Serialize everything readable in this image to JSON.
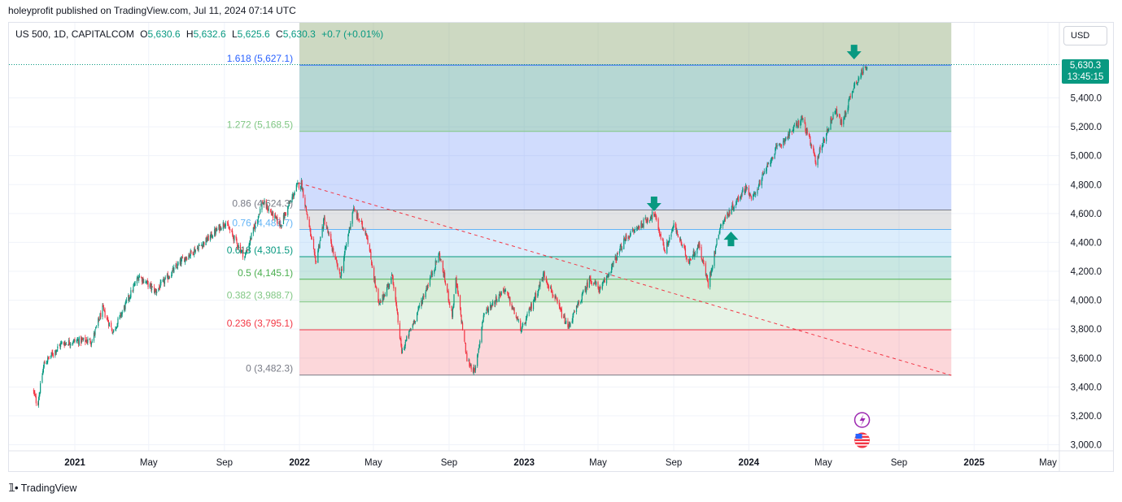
{
  "publisher": "holeyprofit published on TradingView.com, Jul 11, 2024 07:14 UTC",
  "legend": {
    "symbol": "US 500, 1D, CAPITALCOM",
    "o_label": "O",
    "o": "5,630.6",
    "h_label": "H",
    "h": "5,632.6",
    "l_label": "L",
    "l": "5,625.6",
    "c_label": "C",
    "c": "5,630.3",
    "change": "+0.7 (+0.01%)"
  },
  "currency": "USD",
  "last_price": {
    "price": "5,630.3",
    "countdown": "13:45:15"
  },
  "brand": "TradingView",
  "colors": {
    "up": "#089981",
    "down": "#f23645",
    "accent": "#2962ff"
  },
  "chart_data": {
    "type": "candlestick",
    "title": "",
    "xlabel": "",
    "ylabel": "",
    "ylim": [
      2950,
      5750
    ],
    "x_tick_labels": [
      {
        "label": "2021",
        "date": "2021-01-01"
      },
      {
        "label": "May",
        "date": "2021-05-01"
      },
      {
        "label": "Sep",
        "date": "2021-09-01"
      },
      {
        "label": "2022",
        "date": "2022-01-01"
      },
      {
        "label": "May",
        "date": "2022-05-01"
      },
      {
        "label": "Sep",
        "date": "2022-09-01"
      },
      {
        "label": "2023",
        "date": "2023-01-01"
      },
      {
        "label": "May",
        "date": "2023-05-01"
      },
      {
        "label": "Sep",
        "date": "2023-09-01"
      },
      {
        "label": "2024",
        "date": "2024-01-01"
      },
      {
        "label": "May",
        "date": "2024-05-01"
      },
      {
        "label": "Sep",
        "date": "2024-09-01"
      },
      {
        "label": "2025",
        "date": "2025-01-01"
      },
      {
        "label": "May",
        "date": "2025-05-01"
      }
    ],
    "y_tick_labels": [
      "3,000.0",
      "3,200.0",
      "3,400.0",
      "3,600.0",
      "3,800.0",
      "4,000.0",
      "4,200.0",
      "4,400.0",
      "4,600.0",
      "4,800.0",
      "5,000.0",
      "5,200.0",
      "5,400.0"
    ],
    "y_tick_values": [
      3000,
      3200,
      3400,
      3600,
      3800,
      4000,
      4200,
      4400,
      4600,
      4800,
      5000,
      5200,
      5400
    ],
    "price_path": [
      {
        "date": "2020-10-25",
        "price": 3380
      },
      {
        "date": "2020-11-01",
        "price": 3270
      },
      {
        "date": "2020-11-12",
        "price": 3560
      },
      {
        "date": "2020-12-10",
        "price": 3700
      },
      {
        "date": "2021-01-05",
        "price": 3720
      },
      {
        "date": "2021-01-29",
        "price": 3720
      },
      {
        "date": "2021-02-15",
        "price": 3940
      },
      {
        "date": "2021-03-04",
        "price": 3780
      },
      {
        "date": "2021-04-15",
        "price": 4170
      },
      {
        "date": "2021-05-12",
        "price": 4060
      },
      {
        "date": "2021-06-25",
        "price": 4280
      },
      {
        "date": "2021-07-30",
        "price": 4400
      },
      {
        "date": "2021-09-02",
        "price": 4540
      },
      {
        "date": "2021-10-04",
        "price": 4300
      },
      {
        "date": "2021-11-02",
        "price": 4680
      },
      {
        "date": "2021-12-01",
        "price": 4520
      },
      {
        "date": "2021-12-28",
        "price": 4790
      },
      {
        "date": "2022-01-04",
        "price": 4810
      },
      {
        "date": "2022-01-27",
        "price": 4260
      },
      {
        "date": "2022-02-10",
        "price": 4560
      },
      {
        "date": "2022-03-08",
        "price": 4160
      },
      {
        "date": "2022-03-29",
        "price": 4630
      },
      {
        "date": "2022-04-20",
        "price": 4460
      },
      {
        "date": "2022-05-10",
        "price": 3960
      },
      {
        "date": "2022-06-01",
        "price": 4170
      },
      {
        "date": "2022-06-16",
        "price": 3640
      },
      {
        "date": "2022-07-10",
        "price": 3900
      },
      {
        "date": "2022-08-16",
        "price": 4320
      },
      {
        "date": "2022-09-06",
        "price": 3900
      },
      {
        "date": "2022-09-12",
        "price": 4140
      },
      {
        "date": "2022-09-30",
        "price": 3590
      },
      {
        "date": "2022-10-13",
        "price": 3500
      },
      {
        "date": "2022-10-27",
        "price": 3900
      },
      {
        "date": "2022-11-30",
        "price": 4080
      },
      {
        "date": "2022-12-28",
        "price": 3790
      },
      {
        "date": "2023-02-02",
        "price": 4180
      },
      {
        "date": "2023-03-13",
        "price": 3810
      },
      {
        "date": "2023-04-18",
        "price": 4150
      },
      {
        "date": "2023-05-05",
        "price": 4070
      },
      {
        "date": "2023-06-15",
        "price": 4430
      },
      {
        "date": "2023-07-31",
        "price": 4600
      },
      {
        "date": "2023-08-18",
        "price": 4340
      },
      {
        "date": "2023-09-01",
        "price": 4520
      },
      {
        "date": "2023-09-25",
        "price": 4270
      },
      {
        "date": "2023-10-12",
        "price": 4380
      },
      {
        "date": "2023-10-27",
        "price": 4110
      },
      {
        "date": "2023-11-15",
        "price": 4510
      },
      {
        "date": "2023-12-28",
        "price": 4790
      },
      {
        "date": "2024-01-05",
        "price": 4690
      },
      {
        "date": "2024-02-12",
        "price": 5030
      },
      {
        "date": "2024-03-28",
        "price": 5260
      },
      {
        "date": "2024-04-19",
        "price": 4960
      },
      {
        "date": "2024-05-20",
        "price": 5320
      },
      {
        "date": "2024-05-31",
        "price": 5220
      },
      {
        "date": "2024-06-20",
        "price": 5490
      },
      {
        "date": "2024-07-11",
        "price": 5630
      }
    ],
    "fibonacci": {
      "start_date": "2022-01-01",
      "end_date": "2024-11-25",
      "levels": [
        {
          "label": "1.618 (5,627.1)",
          "value": 5627.1,
          "color": "#2962ff",
          "fill": "rgba(145,170,120,0.45)"
        },
        {
          "label": "1.272 (5,168.5)",
          "value": 5168.5,
          "color": "#81c784",
          "fill": "rgba(80,160,150,0.42)"
        },
        {
          "label": "0.86 (4,624.3)",
          "value": 4624.3,
          "color": "#787b86",
          "fill": "rgba(100,140,250,0.30)"
        },
        {
          "label": "0.76 (4,489.7)",
          "value": 4489.7,
          "color": "#64b5f6",
          "fill": "rgba(160,163,170,0.30)"
        },
        {
          "label": "0.618 (4,301.5)",
          "value": 4301.5,
          "color": "#089981",
          "fill": "rgba(130,190,245,0.28)"
        },
        {
          "label": "0.5 (4,145.1)",
          "value": 4145.1,
          "color": "#4caf50",
          "fill": "rgba(40,160,140,0.25)"
        },
        {
          "label": "0.382 (3,988.7)",
          "value": 3988.7,
          "color": "#81c784",
          "fill": "rgba(80,175,80,0.22)"
        },
        {
          "label": "0.236 (3,795.1)",
          "value": 3795.1,
          "color": "#f23645",
          "fill": "rgba(130,195,130,0.20)"
        },
        {
          "label": "0 (3,482.3)",
          "value": 3482.3,
          "color": "#787b86",
          "fill": "rgba(242,54,69,0.20)"
        }
      ]
    },
    "trendline": {
      "start": {
        "date": "2022-01-01",
        "price": 4810
      },
      "end": {
        "date": "2024-11-25",
        "price": 3480
      },
      "style": "dashed",
      "color": "#f23645"
    },
    "markers": [
      {
        "name": "down-arrow",
        "date": "2024-06-20",
        "price": 5700,
        "direction": "down"
      },
      {
        "name": "down-arrow",
        "date": "2023-07-31",
        "price": 4650,
        "direction": "down"
      },
      {
        "name": "up-arrow",
        "date": "2023-12-03",
        "price": 4430,
        "direction": "up"
      }
    ],
    "event_icons": [
      "lightning-icon",
      "us-flag-icon"
    ]
  }
}
